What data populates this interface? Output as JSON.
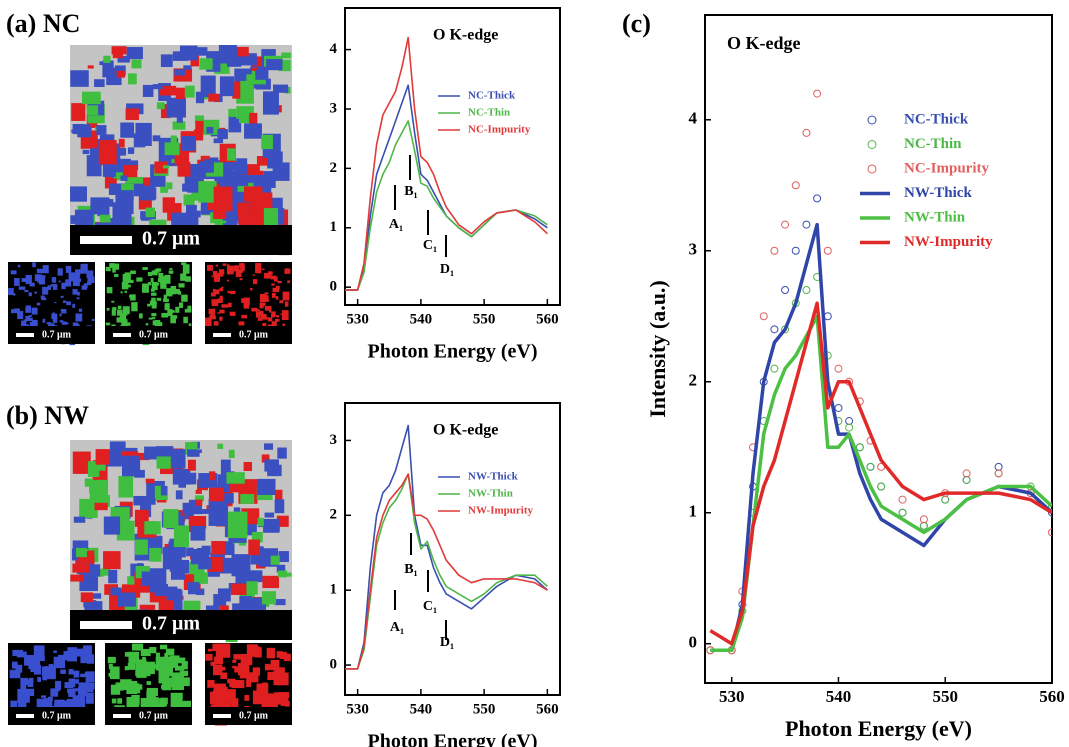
{
  "panels": [
    {
      "label": "(a) NC",
      "scale_bars": [
        "0.7 μm",
        "0.7 μm",
        "0.7 μm",
        "0.7 μm"
      ]
    },
    {
      "label": "(b) NW",
      "scale_bars": [
        "0.7 μm",
        "0.7 μm",
        "0.7 μm",
        "0.7 μm"
      ]
    },
    {
      "label": "(c)"
    }
  ],
  "chart_data": [
    {
      "type": "line",
      "title": "O K-edge",
      "xlabel": "Photon Energy (eV)",
      "x": [
        528,
        530,
        531,
        532,
        533,
        534,
        535,
        536,
        537,
        538,
        539,
        540,
        541,
        542,
        543,
        544,
        546,
        548,
        550,
        552,
        555,
        558,
        560
      ],
      "series": [
        {
          "name": "NC-Thick",
          "color": "#3a4fb0",
          "style": "line",
          "values": [
            -0.05,
            -0.05,
            0.3,
            1.2,
            1.9,
            2.2,
            2.5,
            2.8,
            3.1,
            3.4,
            2.6,
            1.9,
            1.8,
            1.6,
            1.4,
            1.2,
            1.0,
            0.85,
            1.05,
            1.25,
            1.3,
            1.15,
            1.0
          ]
        },
        {
          "name": "NC-Thin",
          "color": "#4fb648",
          "style": "line",
          "values": [
            -0.05,
            -0.05,
            0.25,
            1.0,
            1.6,
            1.9,
            2.1,
            2.4,
            2.6,
            2.8,
            2.3,
            1.75,
            1.7,
            1.5,
            1.35,
            1.2,
            1.0,
            0.85,
            1.05,
            1.25,
            1.3,
            1.2,
            1.05
          ]
        },
        {
          "name": "NC-Impurity",
          "color": "#e03a3a",
          "style": "line",
          "values": [
            -0.05,
            -0.05,
            0.4,
            1.5,
            2.4,
            2.9,
            3.1,
            3.3,
            3.7,
            4.2,
            3.0,
            2.2,
            2.1,
            1.9,
            1.6,
            1.35,
            1.05,
            0.9,
            1.1,
            1.25,
            1.3,
            1.1,
            0.9
          ]
        }
      ],
      "annotations": [
        "A₁",
        "B₁",
        "C₁",
        "D₁"
      ],
      "xlim": [
        528,
        562
      ],
      "ylim": [
        -0.3,
        4.7
      ],
      "xticks": [
        530,
        540,
        550,
        560
      ],
      "yticks": [
        0,
        1,
        2,
        3,
        4
      ],
      "legend": "upper right"
    },
    {
      "type": "line",
      "title": "O K-edge",
      "xlabel": "Photon Energy (eV)",
      "x": [
        528,
        530,
        531,
        532,
        533,
        534,
        535,
        536,
        537,
        538,
        539,
        540,
        541,
        542,
        543,
        544,
        546,
        548,
        550,
        552,
        555,
        558,
        560
      ],
      "series": [
        {
          "name": "NW-Thick",
          "color": "#3a4fb0",
          "style": "line",
          "values": [
            -0.05,
            -0.05,
            0.3,
            1.3,
            2.0,
            2.3,
            2.4,
            2.6,
            2.9,
            3.2,
            2.0,
            1.6,
            1.6,
            1.3,
            1.1,
            0.95,
            0.85,
            0.75,
            0.9,
            1.05,
            1.2,
            1.15,
            1.0
          ]
        },
        {
          "name": "NW-Thin",
          "color": "#4fb648",
          "style": "line",
          "values": [
            -0.05,
            -0.05,
            0.2,
            0.9,
            1.6,
            1.9,
            2.1,
            2.2,
            2.35,
            2.55,
            1.9,
            1.55,
            1.65,
            1.4,
            1.2,
            1.05,
            0.95,
            0.85,
            0.95,
            1.1,
            1.2,
            1.2,
            1.05
          ]
        },
        {
          "name": "NW-Impurity",
          "color": "#e03a3a",
          "style": "line",
          "values": [
            -0.05,
            -0.05,
            0.25,
            1.0,
            1.7,
            2.0,
            2.2,
            2.3,
            2.4,
            2.55,
            2.0,
            2.0,
            1.95,
            1.8,
            1.6,
            1.4,
            1.2,
            1.1,
            1.15,
            1.15,
            1.15,
            1.1,
            1.0
          ]
        }
      ],
      "annotations": [
        "A₁",
        "B₁",
        "C₁",
        "D₁"
      ],
      "xlim": [
        528,
        562
      ],
      "ylim": [
        -0.4,
        3.5
      ],
      "xticks": [
        530,
        540,
        550,
        560
      ],
      "yticks": [
        0,
        1,
        2,
        3
      ],
      "legend": "upper right"
    },
    {
      "type": "line",
      "title": "O K-edge",
      "xlabel": "Photon Energy (eV)",
      "ylabel": "Intensity (a.u.)",
      "x": [
        528,
        530,
        531,
        532,
        533,
        534,
        535,
        536,
        537,
        538,
        539,
        540,
        541,
        542,
        543,
        544,
        546,
        548,
        550,
        552,
        555,
        558,
        560
      ],
      "series": [
        {
          "name": "NC-Thick",
          "color": "#3a4fb0",
          "style": "markers",
          "values": [
            -0.05,
            -0.05,
            0.3,
            1.2,
            2.0,
            2.4,
            2.7,
            3.0,
            3.2,
            3.4,
            2.5,
            1.8,
            1.7,
            1.5,
            1.35,
            1.2,
            1.0,
            0.9,
            1.1,
            1.25,
            1.35,
            1.15,
            1.0
          ]
        },
        {
          "name": "NC-Thin",
          "color": "#4fb648",
          "style": "markers",
          "values": [
            -0.05,
            -0.05,
            0.25,
            1.0,
            1.7,
            2.1,
            2.4,
            2.6,
            2.7,
            2.8,
            2.2,
            1.7,
            1.65,
            1.5,
            1.35,
            1.2,
            1.0,
            0.9,
            1.1,
            1.25,
            1.3,
            1.2,
            1.05
          ]
        },
        {
          "name": "NC-Impurity",
          "color": "#e06060",
          "style": "markers",
          "values": [
            -0.05,
            -0.05,
            0.4,
            1.5,
            2.5,
            3.0,
            3.2,
            3.5,
            3.9,
            4.2,
            3.0,
            2.1,
            2.0,
            1.85,
            1.55,
            1.35,
            1.1,
            0.95,
            1.15,
            1.3,
            1.3,
            1.15,
            0.85
          ]
        },
        {
          "name": "NW-Thick",
          "color": "#2f45a8",
          "style": "line",
          "values": [
            -0.05,
            -0.05,
            0.3,
            1.3,
            2.0,
            2.3,
            2.4,
            2.6,
            2.9,
            3.2,
            2.0,
            1.6,
            1.6,
            1.3,
            1.1,
            0.95,
            0.85,
            0.75,
            0.95,
            1.1,
            1.2,
            1.15,
            1.0
          ]
        },
        {
          "name": "NW-Thin",
          "color": "#4cc043",
          "style": "line",
          "values": [
            -0.05,
            -0.05,
            0.2,
            0.9,
            1.6,
            1.9,
            2.1,
            2.2,
            2.35,
            2.5,
            1.5,
            1.5,
            1.6,
            1.4,
            1.2,
            1.05,
            0.95,
            0.85,
            0.95,
            1.1,
            1.2,
            1.2,
            1.05
          ]
        },
        {
          "name": "NW-Impurity",
          "color": "#e02a2a",
          "style": "line",
          "values": [
            0.1,
            0.0,
            0.25,
            0.9,
            1.2,
            1.4,
            1.7,
            2.0,
            2.3,
            2.6,
            1.8,
            2.0,
            2.0,
            1.8,
            1.6,
            1.4,
            1.2,
            1.1,
            1.15,
            1.15,
            1.15,
            1.1,
            1.0
          ]
        }
      ],
      "xlim": [
        527.5,
        560
      ],
      "ylim": [
        -0.3,
        4.8
      ],
      "xticks": [
        530,
        540,
        550,
        560
      ],
      "yticks": [
        0,
        1,
        2,
        3,
        4
      ],
      "legend": "upper right"
    }
  ]
}
